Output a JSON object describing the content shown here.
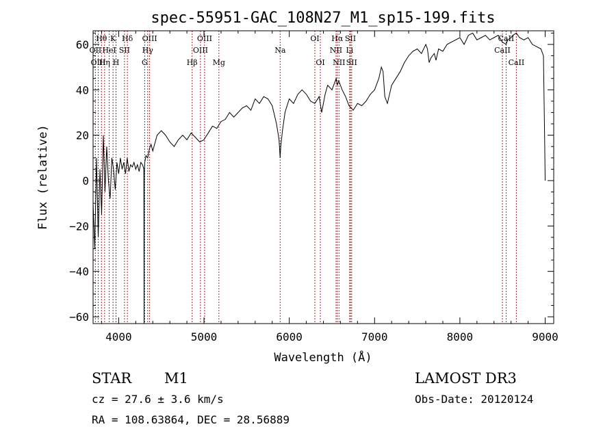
{
  "chart_data": {
    "type": "line",
    "title": "spec-55951-GAC_108N27_M1_sp15-199.fits",
    "xlabel": "Wavelength (Å)",
    "ylabel": "Flux (relative)",
    "xlim": [
      3700,
      9100
    ],
    "ylim": [
      -63,
      66
    ],
    "xticks": [
      4000,
      5000,
      6000,
      7000,
      8000,
      9000
    ],
    "yticks": [
      -60,
      -40,
      -20,
      0,
      20,
      40,
      60
    ],
    "grid": false,
    "line_color": "#000000",
    "marker_color": "#b22222",
    "spectral_lines": [
      {
        "label": "Hθ",
        "x": 3798,
        "row": 1
      },
      {
        "label": "K",
        "x": 3934,
        "row": 1
      },
      {
        "label": "Hδ",
        "x": 4102,
        "row": 1
      },
      {
        "label": "OIII",
        "x": 4363,
        "row": 1
      },
      {
        "label": "OIII",
        "x": 5007,
        "row": 1
      },
      {
        "label": "OI",
        "x": 6300,
        "row": 1
      },
      {
        "label": "Hα",
        "x": 6563,
        "row": 1
      },
      {
        "label": "SII",
        "x": 6717,
        "row": 1
      },
      {
        "label": "CaII",
        "x": 8542,
        "row": 1
      },
      {
        "label": "OII",
        "x": 3727,
        "row": 2
      },
      {
        "label": "HeI",
        "x": 3889,
        "row": 2
      },
      {
        "label": "SII",
        "x": 4068,
        "row": 2
      },
      {
        "label": "Hγ",
        "x": 4340,
        "row": 2
      },
      {
        "label": "OIII",
        "x": 4959,
        "row": 2
      },
      {
        "label": "Na",
        "x": 5893,
        "row": 2
      },
      {
        "label": "NII",
        "x": 6548,
        "row": 2
      },
      {
        "label": "Li",
        "x": 6708,
        "row": 2
      },
      {
        "label": "CaII",
        "x": 8498,
        "row": 2
      },
      {
        "label": "OIII",
        "x": 3760,
        "row": 3
      },
      {
        "label": "Hη",
        "x": 3835,
        "row": 3
      },
      {
        "label": "H",
        "x": 3969,
        "row": 3
      },
      {
        "label": "G",
        "x": 4305,
        "row": 3
      },
      {
        "label": "Hβ",
        "x": 4861,
        "row": 3
      },
      {
        "label": "Mg",
        "x": 5175,
        "row": 3
      },
      {
        "label": "OI",
        "x": 6364,
        "row": 3
      },
      {
        "label": "NII",
        "x": 6583,
        "row": 3
      },
      {
        "label": "SII",
        "x": 6731,
        "row": 3
      },
      {
        "label": "CaII",
        "x": 8662,
        "row": 3
      }
    ],
    "series": [
      {
        "x": [
          3700,
          3720,
          3740,
          3760,
          3780,
          3800,
          3820,
          3840,
          3860,
          3880,
          3900,
          3920,
          3940,
          3960,
          3980,
          4000,
          4020,
          4040,
          4060,
          4080,
          4100,
          4120,
          4140,
          4160,
          4180,
          4200,
          4220,
          4240,
          4260,
          4280,
          4295,
          4298,
          4300,
          4302,
          4306,
          4320,
          4340,
          4360,
          4380,
          4400,
          4450,
          4500,
          4550,
          4600,
          4650,
          4700,
          4750,
          4800,
          4850,
          4900,
          4950,
          5000,
          5050,
          5100,
          5150,
          5200,
          5250,
          5300,
          5350,
          5400,
          5450,
          5500,
          5550,
          5600,
          5650,
          5700,
          5750,
          5800,
          5850,
          5880,
          5893,
          5900,
          5920,
          5950,
          6000,
          6050,
          6100,
          6150,
          6200,
          6250,
          6300,
          6350,
          6380,
          6420,
          6450,
          6500,
          6550,
          6563,
          6580,
          6620,
          6660,
          6700,
          6750,
          6800,
          6850,
          6900,
          6950,
          7000,
          7050,
          7080,
          7100,
          7120,
          7150,
          7200,
          7250,
          7300,
          7350,
          7400,
          7450,
          7500,
          7550,
          7600,
          7620,
          7640,
          7660,
          7680,
          7700,
          7720,
          7750,
          7800,
          7850,
          7900,
          7950,
          8000,
          8050,
          8100,
          8150,
          8200,
          8250,
          8300,
          8350,
          8400,
          8450,
          8498,
          8542,
          8560,
          8600,
          8620,
          8662,
          8700,
          8750,
          8800,
          8850,
          8900,
          8950,
          8980,
          8995,
          9000
        ],
        "y": [
          -10,
          -30,
          10,
          -25,
          5,
          -15,
          20,
          -5,
          15,
          0,
          -8,
          10,
          5,
          -4,
          8,
          3,
          10,
          5,
          8,
          3,
          10,
          4,
          7,
          6,
          8,
          5,
          7,
          4,
          8,
          7,
          5,
          -63,
          0,
          5,
          8,
          11,
          10,
          14,
          16,
          13,
          20,
          22,
          20,
          17,
          15,
          18,
          20,
          18,
          21,
          19,
          17,
          18,
          21,
          24,
          23,
          26,
          27,
          30,
          28,
          30,
          32,
          33,
          31,
          36,
          34,
          37,
          36,
          33,
          25,
          18,
          10,
          15,
          22,
          30,
          36,
          34,
          38,
          40,
          38,
          35,
          34,
          37,
          30,
          38,
          42,
          40,
          45,
          42,
          44,
          40,
          37,
          33,
          31,
          34,
          33,
          35,
          38,
          40,
          45,
          50,
          48,
          37,
          34,
          42,
          45,
          48,
          52,
          55,
          57,
          58,
          56,
          60,
          58,
          52,
          54,
          55,
          56,
          53,
          58,
          57,
          60,
          61,
          62,
          63,
          60,
          64,
          65,
          62,
          63,
          64,
          62,
          63,
          64,
          61,
          60,
          62,
          63,
          64,
          65,
          63,
          62,
          63,
          60,
          59,
          58,
          55,
          15,
          0
        ]
      }
    ]
  },
  "info": {
    "object_class": "STAR",
    "subclass": "M1",
    "survey": "LAMOST DR3",
    "cz": "cz = 27.6 ± 3.6 km/s",
    "obs_date": "Obs-Date: 20120124",
    "coords": "RA = 108.63864, DEC =  28.56889"
  }
}
